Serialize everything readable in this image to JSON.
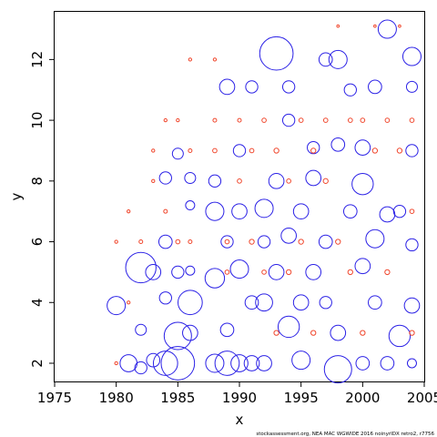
{
  "chart_data": {
    "type": "scatter",
    "xlabel": "x",
    "ylabel": "y",
    "xlim": [
      1975,
      2005
    ],
    "ylim": [
      1.4,
      13.6
    ],
    "x_ticks": [
      "1975",
      "1980",
      "1985",
      "1990",
      "1995",
      "2000",
      "2005"
    ],
    "x_tick_values": [
      1975,
      1980,
      1985,
      1990,
      1995,
      2000,
      2005
    ],
    "y_ticks": [
      "2",
      "4",
      "6",
      "8",
      "10",
      "12"
    ],
    "y_tick_values": [
      2,
      4,
      6,
      8,
      10,
      12
    ],
    "series": [
      {
        "color": "#2b21e6",
        "marker": "open-circle",
        "points": [
          [
            1980,
            3.9,
            0.3
          ],
          [
            1981,
            2.0,
            0.28
          ],
          [
            1982,
            5.15,
            0.5
          ],
          [
            1982,
            1.85,
            0.2
          ],
          [
            1982,
            3.1,
            0.18
          ],
          [
            1983,
            5.0,
            0.25
          ],
          [
            1983,
            2.1,
            0.22
          ],
          [
            1984,
            2.0,
            0.4
          ],
          [
            1984,
            6.0,
            0.22
          ],
          [
            1984,
            4.15,
            0.2
          ],
          [
            1984,
            8.1,
            0.2
          ],
          [
            1985,
            2.0,
            0.55
          ],
          [
            1985,
            2.9,
            0.45
          ],
          [
            1985,
            5.0,
            0.2
          ],
          [
            1985,
            8.9,
            0.18
          ],
          [
            1986,
            4.0,
            0.4
          ],
          [
            1986,
            3.0,
            0.25
          ],
          [
            1986,
            8.1,
            0.18
          ],
          [
            1986,
            5.05,
            0.15
          ],
          [
            1986,
            7.2,
            0.15
          ],
          [
            1988,
            4.8,
            0.32
          ],
          [
            1988,
            7.0,
            0.3
          ],
          [
            1988,
            2.0,
            0.3
          ],
          [
            1988,
            8.0,
            0.2
          ],
          [
            1989,
            2.0,
            0.4
          ],
          [
            1989,
            11.1,
            0.25
          ],
          [
            1989,
            6.0,
            0.2
          ],
          [
            1989,
            3.1,
            0.22
          ],
          [
            1990,
            5.1,
            0.3
          ],
          [
            1990,
            2.0,
            0.28
          ],
          [
            1990,
            7.0,
            0.25
          ],
          [
            1990,
            9.0,
            0.2
          ],
          [
            1991,
            11.1,
            0.2
          ],
          [
            1991,
            4.0,
            0.22
          ],
          [
            1991,
            2.0,
            0.25
          ],
          [
            1992,
            7.1,
            0.3
          ],
          [
            1992,
            2.0,
            0.25
          ],
          [
            1992,
            6.0,
            0.2
          ],
          [
            1992,
            4.0,
            0.28
          ],
          [
            1993,
            12.2,
            0.55
          ],
          [
            1993,
            5.0,
            0.25
          ],
          [
            1993,
            8.0,
            0.25
          ],
          [
            1994,
            3.2,
            0.35
          ],
          [
            1994,
            11.1,
            0.2
          ],
          [
            1994,
            6.2,
            0.25
          ],
          [
            1994,
            10.0,
            0.2
          ],
          [
            1995,
            2.1,
            0.3
          ],
          [
            1995,
            7.0,
            0.25
          ],
          [
            1995,
            4.0,
            0.25
          ],
          [
            1996,
            8.1,
            0.25
          ],
          [
            1996,
            9.1,
            0.2
          ],
          [
            1996,
            5.0,
            0.25
          ],
          [
            1997,
            12.0,
            0.22
          ],
          [
            1997,
            6.0,
            0.22
          ],
          [
            1997,
            4.0,
            0.2
          ],
          [
            1998,
            1.8,
            0.45
          ],
          [
            1998,
            12.0,
            0.3
          ],
          [
            1998,
            9.2,
            0.22
          ],
          [
            1998,
            3.0,
            0.25
          ],
          [
            1999,
            11.0,
            0.2
          ],
          [
            1999,
            7.0,
            0.22
          ],
          [
            2000,
            7.9,
            0.35
          ],
          [
            2000,
            5.2,
            0.25
          ],
          [
            2000,
            9.1,
            0.25
          ],
          [
            2000,
            2.0,
            0.22
          ],
          [
            2001,
            6.1,
            0.3
          ],
          [
            2001,
            11.1,
            0.22
          ],
          [
            2001,
            4.0,
            0.22
          ],
          [
            2002,
            13.0,
            0.3
          ],
          [
            2002,
            6.9,
            0.25
          ],
          [
            2002,
            2.0,
            0.22
          ],
          [
            2003,
            2.9,
            0.35
          ],
          [
            2003,
            7.0,
            0.2
          ],
          [
            2004,
            12.1,
            0.3
          ],
          [
            2004,
            3.9,
            0.25
          ],
          [
            2004,
            5.9,
            0.2
          ],
          [
            2004,
            9.0,
            0.2
          ],
          [
            2004,
            11.1,
            0.18
          ],
          [
            2004,
            2.0,
            0.15
          ]
        ]
      },
      {
        "color": "#f0472d",
        "marker": "small-circle",
        "points": [
          [
            1980,
            2.0,
            0.05
          ],
          [
            1980,
            6.0,
            0.05
          ],
          [
            1981,
            4.0,
            0.05
          ],
          [
            1981,
            7.0,
            0.05
          ],
          [
            1982,
            6.0,
            0.06
          ],
          [
            1983,
            8.0,
            0.05
          ],
          [
            1983,
            9.0,
            0.05
          ],
          [
            1984,
            10.0,
            0.05
          ],
          [
            1984,
            7.0,
            0.06
          ],
          [
            1985,
            10.0,
            0.05
          ],
          [
            1985,
            6.0,
            0.07
          ],
          [
            1986,
            12.0,
            0.05
          ],
          [
            1986,
            6.0,
            0.06
          ],
          [
            1986,
            9.0,
            0.06
          ],
          [
            1988,
            12.0,
            0.05
          ],
          [
            1988,
            10.0,
            0.06
          ],
          [
            1988,
            9.0,
            0.07
          ],
          [
            1989,
            6.0,
            0.07
          ],
          [
            1989,
            5.0,
            0.07
          ],
          [
            1990,
            10.0,
            0.06
          ],
          [
            1990,
            8.0,
            0.07
          ],
          [
            1991,
            6.0,
            0.08
          ],
          [
            1991,
            9.0,
            0.07
          ],
          [
            1992,
            5.0,
            0.07
          ],
          [
            1992,
            10.0,
            0.07
          ],
          [
            1993,
            9.0,
            0.08
          ],
          [
            1993,
            3.0,
            0.08
          ],
          [
            1994,
            8.0,
            0.07
          ],
          [
            1994,
            5.0,
            0.08
          ],
          [
            1995,
            10.0,
            0.07
          ],
          [
            1995,
            6.0,
            0.08
          ],
          [
            1996,
            9.0,
            0.08
          ],
          [
            1996,
            3.0,
            0.08
          ],
          [
            1997,
            10.0,
            0.07
          ],
          [
            1997,
            8.0,
            0.08
          ],
          [
            1998,
            6.0,
            0.08
          ],
          [
            1998,
            13.1,
            0.04
          ],
          [
            1999,
            10.0,
            0.07
          ],
          [
            1999,
            5.0,
            0.08
          ],
          [
            2000,
            10.0,
            0.07
          ],
          [
            2000,
            3.0,
            0.08
          ],
          [
            2001,
            9.0,
            0.08
          ],
          [
            2001,
            13.1,
            0.04
          ],
          [
            2002,
            10.0,
            0.07
          ],
          [
            2002,
            5.0,
            0.08
          ],
          [
            2003,
            9.0,
            0.08
          ],
          [
            2003,
            13.1,
            0.04
          ],
          [
            2004,
            10.0,
            0.07
          ],
          [
            2004,
            7.0,
            0.07
          ],
          [
            2004,
            3.0,
            0.08
          ]
        ]
      }
    ],
    "footnote": "stockassessment.org, NEA MAC WGWIDE 2016 noinyrIDX retro2, r7756"
  }
}
